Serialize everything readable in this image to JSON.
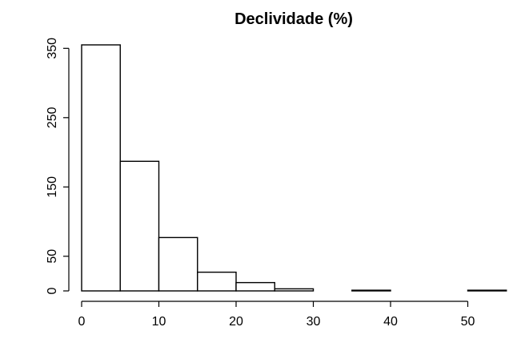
{
  "chart_data": {
    "type": "bar",
    "title": "Declividade (%)",
    "xlabel": "",
    "ylabel": "",
    "bins": [
      {
        "x0": 0,
        "x1": 5,
        "count": 355
      },
      {
        "x0": 5,
        "x1": 10,
        "count": 187
      },
      {
        "x0": 10,
        "x1": 15,
        "count": 77
      },
      {
        "x0": 15,
        "x1": 20,
        "count": 27
      },
      {
        "x0": 20,
        "x1": 25,
        "count": 12
      },
      {
        "x0": 25,
        "x1": 30,
        "count": 3
      },
      {
        "x0": 30,
        "x1": 35,
        "count": 0
      },
      {
        "x0": 35,
        "x1": 40,
        "count": 1
      },
      {
        "x0": 40,
        "x1": 45,
        "count": 0
      },
      {
        "x0": 45,
        "x1": 50,
        "count": 0
      },
      {
        "x0": 50,
        "x1": 55,
        "count": 1
      }
    ],
    "x_ticks": [
      0,
      10,
      20,
      30,
      40,
      50
    ],
    "y_ticks": [
      0,
      50,
      150,
      250,
      350
    ],
    "xlim": [
      0,
      55
    ],
    "ylim": [
      0,
      355
    ],
    "grid": false,
    "bar_fill": "#ffffff",
    "bar_stroke": "#000000"
  }
}
